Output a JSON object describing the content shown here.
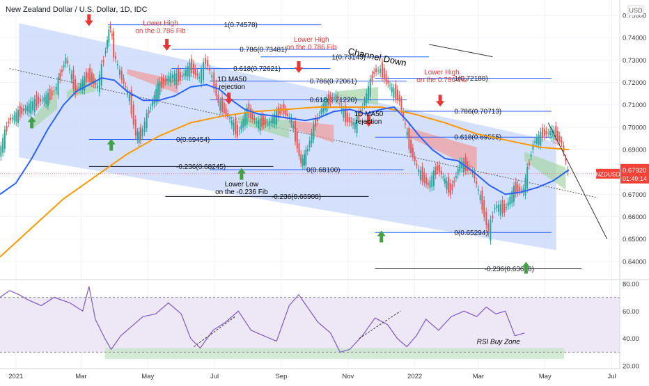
{
  "chart_data": {
    "type": "line",
    "title": "New Zealand Dollar / U.S. Dollar, 1D, IDC",
    "currency_badge": "USD",
    "colors": {
      "price_up": "#26a69a",
      "price_down": "#ef5350",
      "ma50": "#2962ff",
      "ma200": "#ff9800",
      "channel_fill": "#c7d7fb",
      "cloud_green": "#a5d6a7",
      "cloud_red": "#ef9a9a",
      "rsi_line": "#7e57c2",
      "rsi_band": "#ede7f6",
      "buy_zone": "#c8e6c9",
      "fib_line": "#2962ff",
      "arrow_up": "#43a047",
      "arrow_down": "#e53935",
      "price_tag": "#f44336"
    },
    "price_axis": {
      "ylim": [
        0.6325,
        0.755
      ],
      "ticks": [
        "0.75000",
        "0.74000",
        "0.73000",
        "0.72000",
        "0.71000",
        "0.70000",
        "0.69000",
        "0.68000",
        "0.67000",
        "0.66000",
        "0.65000",
        "0.64000"
      ],
      "tick_values": [
        0.75,
        0.74,
        0.73,
        0.72,
        0.71,
        0.7,
        0.69,
        0.68,
        0.67,
        0.66,
        0.65,
        0.64
      ],
      "current_symbol": "NZDUSD",
      "current_price": "0.67920",
      "current_value": 0.6792,
      "countdown": "01:49:14"
    },
    "rsi_axis": {
      "ylim": [
        18,
        82
      ],
      "ticks": [
        "80.00",
        "60.00",
        "40.00",
        "20.00"
      ],
      "tick_values": [
        80,
        60,
        40,
        20
      ],
      "upper_band": 70,
      "lower_band": 30,
      "buy_zone_label": "RSI Buy Zone"
    },
    "time_axis": {
      "labels": [
        "2021",
        "Mar",
        "May",
        "Jul",
        "Sep",
        "Nov",
        "2022",
        "Mar",
        "May",
        "Jul"
      ],
      "label_index": [
        10,
        51,
        93,
        135,
        177,
        219,
        261,
        301,
        343,
        385
      ]
    },
    "price_series_index_range": [
      0,
      332
    ],
    "price_path": [
      [
        0,
        0.688
      ],
      [
        6,
        0.703
      ],
      [
        12,
        0.706
      ],
      [
        20,
        0.71
      ],
      [
        26,
        0.712
      ],
      [
        32,
        0.714
      ],
      [
        36,
        0.718
      ],
      [
        42,
        0.731
      ],
      [
        48,
        0.716
      ],
      [
        56,
        0.723
      ],
      [
        62,
        0.718
      ],
      [
        67,
        0.735
      ],
      [
        69,
        0.743
      ],
      [
        70,
        0.7452
      ],
      [
        72,
        0.733
      ],
      [
        76,
        0.724
      ],
      [
        82,
        0.713
      ],
      [
        86,
        0.697
      ],
      [
        89,
        0.696
      ],
      [
        93,
        0.705
      ],
      [
        100,
        0.718
      ],
      [
        108,
        0.723
      ],
      [
        114,
        0.722
      ],
      [
        120,
        0.727
      ],
      [
        126,
        0.722
      ],
      [
        130,
        0.73
      ],
      [
        134,
        0.722
      ],
      [
        138,
        0.711
      ],
      [
        144,
        0.705
      ],
      [
        150,
        0.697
      ],
      [
        156,
        0.707
      ],
      [
        162,
        0.702
      ],
      [
        170,
        0.702
      ],
      [
        178,
        0.708
      ],
      [
        184,
        0.703
      ],
      [
        190,
        0.684
      ],
      [
        193,
        0.688
      ],
      [
        198,
        0.7
      ],
      [
        204,
        0.71
      ],
      [
        212,
        0.714
      ],
      [
        218,
        0.704
      ],
      [
        224,
        0.701
      ],
      [
        230,
        0.712
      ],
      [
        236,
        0.725
      ],
      [
        240,
        0.7255
      ],
      [
        246,
        0.718
      ],
      [
        252,
        0.712
      ],
      [
        258,
        0.692
      ],
      [
        264,
        0.68
      ],
      [
        270,
        0.674
      ],
      [
        276,
        0.682
      ],
      [
        284,
        0.671
      ],
      [
        290,
        0.684
      ],
      [
        298,
        0.68
      ],
      [
        304,
        0.665
      ],
      [
        308,
        0.6529
      ],
      [
        312,
        0.665
      ],
      [
        318,
        0.663
      ],
      [
        324,
        0.672
      ],
      [
        330,
        0.672
      ],
      [
        336,
        0.693
      ],
      [
        342,
        0.697
      ],
      [
        348,
        0.698
      ],
      [
        354,
        0.693
      ],
      [
        358,
        0.679
      ]
    ],
    "ma50_path": [
      [
        0,
        0.67
      ],
      [
        10,
        0.675
      ],
      [
        20,
        0.686
      ],
      [
        30,
        0.699
      ],
      [
        40,
        0.71
      ],
      [
        48,
        0.716
      ],
      [
        56,
        0.719
      ],
      [
        64,
        0.722
      ],
      [
        72,
        0.721
      ],
      [
        80,
        0.716
      ],
      [
        90,
        0.712
      ],
      [
        100,
        0.712
      ],
      [
        110,
        0.714
      ],
      [
        120,
        0.718
      ],
      [
        130,
        0.719
      ],
      [
        138,
        0.717
      ],
      [
        146,
        0.712
      ],
      [
        154,
        0.708
      ],
      [
        162,
        0.706
      ],
      [
        172,
        0.705
      ],
      [
        182,
        0.704
      ],
      [
        192,
        0.703
      ],
      [
        200,
        0.704
      ],
      [
        210,
        0.707
      ],
      [
        220,
        0.708
      ],
      [
        230,
        0.706
      ],
      [
        240,
        0.708
      ],
      [
        248,
        0.709
      ],
      [
        256,
        0.703
      ],
      [
        264,
        0.696
      ],
      [
        272,
        0.69
      ],
      [
        280,
        0.686
      ],
      [
        288,
        0.685
      ],
      [
        298,
        0.68
      ],
      [
        308,
        0.674
      ],
      [
        318,
        0.67
      ],
      [
        328,
        0.671
      ],
      [
        338,
        0.673
      ],
      [
        348,
        0.676
      ],
      [
        358,
        0.681
      ]
    ],
    "ma200_path": [
      [
        0,
        0.642
      ],
      [
        20,
        0.655
      ],
      [
        40,
        0.668
      ],
      [
        60,
        0.678
      ],
      [
        80,
        0.688
      ],
      [
        100,
        0.696
      ],
      [
        120,
        0.702
      ],
      [
        140,
        0.705
      ],
      [
        160,
        0.707
      ],
      [
        180,
        0.708
      ],
      [
        200,
        0.709
      ],
      [
        220,
        0.709
      ],
      [
        240,
        0.709
      ],
      [
        260,
        0.706
      ],
      [
        280,
        0.702
      ],
      [
        300,
        0.697
      ],
      [
        320,
        0.694
      ],
      [
        340,
        0.691
      ],
      [
        358,
        0.69
      ]
    ],
    "channel_upper": [
      [
        12,
        0.7465
      ],
      [
        350,
        0.6935
      ]
    ],
    "channel_lower": [
      [
        12,
        0.6865
      ],
      [
        350,
        0.645
      ]
    ],
    "cloud_segments": [
      {
        "kind": "green",
        "start": [
          20,
          0.703
        ],
        "end": [
          36,
          0.718
        ],
        "thick": 0.01
      },
      {
        "kind": "green",
        "start": [
          42,
          0.716
        ],
        "end": [
          60,
          0.724
        ],
        "thick": 0.008
      },
      {
        "kind": "red",
        "start": [
          80,
          0.726
        ],
        "end": [
          112,
          0.721
        ],
        "thick": 0.006
      },
      {
        "kind": "green",
        "start": [
          150,
          0.705
        ],
        "end": [
          182,
          0.703
        ],
        "thick": 0.008
      },
      {
        "kind": "red",
        "start": [
          182,
          0.703
        ],
        "end": [
          210,
          0.701
        ],
        "thick": 0.008
      },
      {
        "kind": "green",
        "start": [
          212,
          0.716
        ],
        "end": [
          238,
          0.718
        ],
        "thick": 0.008
      },
      {
        "kind": "red",
        "start": [
          256,
          0.7
        ],
        "end": [
          300,
          0.691
        ],
        "thick": 0.01
      },
      {
        "kind": "green",
        "start": [
          330,
          0.689
        ],
        "end": [
          356,
          0.682
        ],
        "thick": 0.01
      }
    ],
    "fib_lines": [
      {
        "label": "1(0.74578)",
        "value": 0.74578,
        "from": 68,
        "to": 140
      },
      {
        "label": "0.786(0.73481)",
        "value": 0.73481,
        "from": 108,
        "to": 150
      },
      {
        "label": "0.618(0.72621)",
        "value": 0.72621,
        "from": 108,
        "to": 146
      },
      {
        "label": "0(0.69454)",
        "value": 0.69454,
        "from": 56,
        "to": 110
      },
      {
        "label": "-0.236(0.68245)",
        "value": 0.68245,
        "from": 56,
        "to": 110
      },
      {
        "label": "1(0.73143)",
        "value": 0.73143,
        "from": 164,
        "to": 208
      },
      {
        "label": "0.786(0.72061)",
        "value": 0.72061,
        "from": 132,
        "to": 194
      },
      {
        "label": "0.618(0.71220)",
        "value": 0.7122,
        "from": 132,
        "to": 194
      },
      {
        "label": "0(0.68100)",
        "value": 0.681,
        "from": 132,
        "to": 192
      },
      {
        "label": "-0.236(0.66908)",
        "value": 0.66908,
        "from": 104,
        "to": 170
      },
      {
        "label": "1(0.72188)",
        "value": 0.72188,
        "from": 236,
        "to": 285
      },
      {
        "label": "0.786(0.70713)",
        "value": 0.70713,
        "from": 236,
        "to": 285
      },
      {
        "label": "0.618(0.69555)",
        "value": 0.69555,
        "from": 236,
        "to": 285
      },
      {
        "label": "0(0.65294)",
        "value": 0.65294,
        "from": 236,
        "to": 285
      },
      {
        "label": "-0.236(0.63668)",
        "value": 0.63668,
        "from": 236,
        "to": 304
      }
    ],
    "annotations": [
      {
        "text": "Lower High\non the 0.786 Fib",
        "x": 101,
        "y": 0.7455,
        "color": "#e53935"
      },
      {
        "text": "Lower High\non the 0.786 Fib",
        "x": 196,
        "y": 0.7382,
        "color": "#e53935"
      },
      {
        "text": "Lower High\non the 0.786 Fib",
        "x": 278,
        "y": 0.7236,
        "color": "#e53935"
      },
      {
        "text": "1D MA50\nrejection",
        "x": 146,
        "y": 0.7205,
        "color": "#000000"
      },
      {
        "text": "1D MA50\nrejection",
        "x": 232,
        "y": 0.705,
        "color": "#000000"
      },
      {
        "text": "Lower Low\non the -0.236 Fib",
        "x": 152,
        "y": 0.6736,
        "color": "#000000"
      },
      {
        "text": "Channel Down",
        "x": 237,
        "y": 0.73,
        "color": "#000000",
        "rotate": 12
      }
    ],
    "arrows": [
      {
        "dir": "up",
        "x": 20,
        "y": 0.702
      },
      {
        "dir": "up",
        "x": 70,
        "y": 0.692
      },
      {
        "dir": "up",
        "x": 152,
        "y": 0.679
      },
      {
        "dir": "up",
        "x": 240,
        "y": 0.651
      },
      {
        "dir": "up",
        "x": 331,
        "y": 0.637
      },
      {
        "dir": "down",
        "x": 56,
        "y": 0.748
      },
      {
        "dir": "down",
        "x": 105,
        "y": 0.737
      },
      {
        "dir": "down",
        "x": 188,
        "y": 0.727
      },
      {
        "dir": "down",
        "x": 277,
        "y": 0.712
      },
      {
        "dir": "down",
        "x": 232,
        "y": 0.703
      },
      {
        "dir": "down",
        "x": 144,
        "y": 0.713
      }
    ],
    "rsi_path": [
      [
        0,
        70
      ],
      [
        6,
        75
      ],
      [
        12,
        72
      ],
      [
        18,
        68
      ],
      [
        26,
        64
      ],
      [
        34,
        70
      ],
      [
        44,
        66
      ],
      [
        52,
        60
      ],
      [
        56,
        78
      ],
      [
        60,
        54
      ],
      [
        66,
        40
      ],
      [
        70,
        32
      ],
      [
        76,
        42
      ],
      [
        82,
        48
      ],
      [
        90,
        56
      ],
      [
        98,
        58
      ],
      [
        106,
        66
      ],
      [
        114,
        58
      ],
      [
        120,
        40
      ],
      [
        126,
        33
      ],
      [
        134,
        46
      ],
      [
        142,
        52
      ],
      [
        150,
        60
      ],
      [
        158,
        46
      ],
      [
        166,
        42
      ],
      [
        174,
        38
      ],
      [
        182,
        64
      ],
      [
        188,
        72
      ],
      [
        194,
        62
      ],
      [
        200,
        52
      ],
      [
        208,
        44
      ],
      [
        214,
        30
      ],
      [
        220,
        32
      ],
      [
        228,
        42
      ],
      [
        236,
        55
      ],
      [
        244,
        50
      ],
      [
        250,
        40
      ],
      [
        256,
        34
      ],
      [
        262,
        42
      ],
      [
        268,
        54
      ],
      [
        276,
        46
      ],
      [
        284,
        56
      ],
      [
        292,
        60
      ],
      [
        300,
        56
      ],
      [
        306,
        63
      ],
      [
        312,
        58
      ],
      [
        318,
        60
      ],
      [
        324,
        42
      ],
      [
        330,
        44
      ]
    ],
    "rsi_dashed_trends": [
      [
        [
          122,
          34
        ],
        [
          148,
          56
        ]
      ],
      [
        [
          226,
          40
        ],
        [
          252,
          60
        ]
      ]
    ]
  }
}
